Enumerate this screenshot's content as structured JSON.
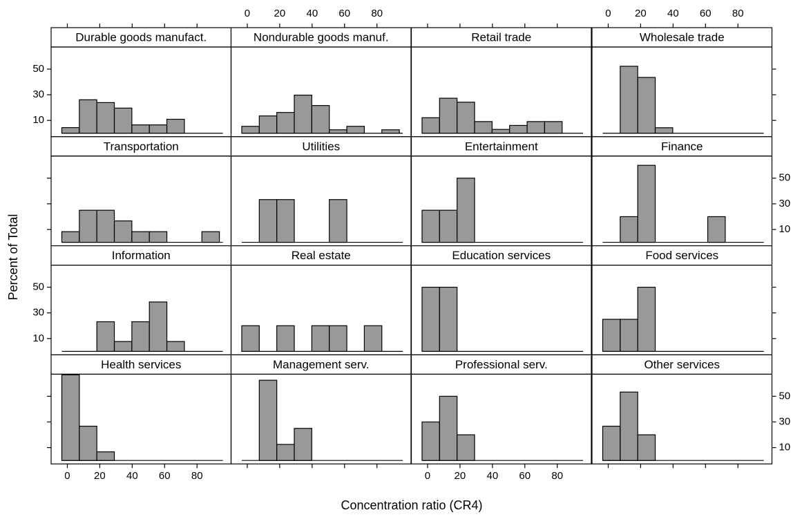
{
  "chart_data": {
    "type": "histogram",
    "xlabel": "Concentration ratio (CR4)",
    "ylabel": "Percent of Total",
    "xlim": [
      -10,
      101
    ],
    "ylim": [
      -2.7,
      67.2
    ],
    "xticks": [
      0,
      20,
      40,
      60,
      80
    ],
    "yticks": [
      10,
      30,
      50
    ],
    "color": "#999999",
    "bins": [
      -3.4,
      7.4,
      18.2,
      29,
      39.8,
      50.6,
      61.4,
      72.2,
      83,
      93.8
    ],
    "panels": [
      {
        "title": "Durable goods manufact.",
        "values": [
          4.4,
          26.1,
          23.9,
          19.6,
          6.5,
          6.5,
          10.9,
          0,
          0
        ]
      },
      {
        "title": "Nondurable goods manuf.",
        "values": [
          5.4,
          13.5,
          16.2,
          29.7,
          21.6,
          2.7,
          5.4,
          0,
          2.7
        ]
      },
      {
        "title": "Retail trade",
        "values": [
          12.1,
          27.3,
          24.2,
          9.1,
          3,
          6.1,
          9.1,
          9.1,
          0
        ]
      },
      {
        "title": "Wholesale trade",
        "values": [
          0,
          52.2,
          43.5,
          4.3,
          0,
          0,
          0,
          0,
          0
        ]
      },
      {
        "title": "Transportation",
        "values": [
          8.3,
          25,
          25,
          16.7,
          8.3,
          8.3,
          0,
          0,
          8.3
        ]
      },
      {
        "title": "Utilities",
        "values": [
          0,
          33.3,
          33.3,
          0,
          0,
          33.3,
          0,
          0,
          0
        ]
      },
      {
        "title": "Entertainment",
        "values": [
          25,
          25,
          50,
          0,
          0,
          0,
          0,
          0,
          0
        ]
      },
      {
        "title": "Finance",
        "values": [
          0,
          20,
          60,
          0,
          0,
          0,
          20,
          0,
          0
        ]
      },
      {
        "title": "Information",
        "values": [
          0,
          0,
          23.1,
          7.7,
          23.1,
          38.5,
          7.7,
          0,
          0
        ]
      },
      {
        "title": "Real estate",
        "values": [
          20,
          0,
          20,
          0,
          20,
          20,
          0,
          20,
          0
        ]
      },
      {
        "title": "Education services",
        "values": [
          50,
          50,
          0,
          0,
          0,
          0,
          0,
          0,
          0
        ]
      },
      {
        "title": "Food services",
        "values": [
          25,
          25,
          50,
          0,
          0,
          0,
          0,
          0,
          0
        ]
      },
      {
        "title": "Health services",
        "values": [
          66.7,
          26.7,
          6.7,
          0,
          0,
          0,
          0,
          0,
          0
        ]
      },
      {
        "title": "Management serv.",
        "values": [
          0,
          62.5,
          12.5,
          25,
          0,
          0,
          0,
          0,
          0
        ]
      },
      {
        "title": "Professional serv.",
        "values": [
          30,
          50,
          20,
          0,
          0,
          0,
          0,
          0,
          0
        ]
      },
      {
        "title": "Other services",
        "values": [
          26.7,
          53.3,
          20,
          0,
          0,
          0,
          0,
          0,
          0
        ]
      }
    ]
  }
}
